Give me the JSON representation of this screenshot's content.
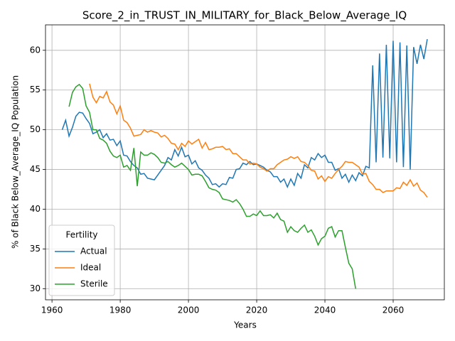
{
  "chart_data": {
    "type": "line",
    "title": "Score_2_in_TRUST_IN_MILITARY_for_Black_Below_Average_IQ",
    "xlabel": "Years",
    "ylabel": "% of Black Below_Average_IQ Population",
    "legend_title": "Fertility",
    "legend": "lower left",
    "grid": true,
    "xlim": [
      1958.1,
      2075
    ],
    "ylim": [
      28.6,
      63.2
    ],
    "xticks": [
      1960,
      1980,
      2000,
      2020,
      2040,
      2060
    ],
    "yticks": [
      30,
      35,
      40,
      45,
      50,
      55,
      60
    ],
    "x": [
      1963,
      1964,
      1965,
      1966,
      1967,
      1968,
      1969,
      1970,
      1971,
      1972,
      1973,
      1974,
      1975,
      1976,
      1977,
      1978,
      1979,
      1980,
      1981,
      1982,
      1983,
      1984,
      1985,
      1986,
      1987,
      1988,
      1989,
      1990,
      1991,
      1992,
      1993,
      1994,
      1995,
      1996,
      1997,
      1998,
      1999,
      2000,
      2001,
      2002,
      2003,
      2004,
      2005,
      2006,
      2007,
      2008,
      2009,
      2010,
      2011,
      2012,
      2013,
      2014,
      2015,
      2016,
      2017,
      2018,
      2019,
      2020,
      2021,
      2022,
      2023,
      2024,
      2025,
      2026,
      2027,
      2028,
      2029,
      2030,
      2031,
      2032,
      2033,
      2034,
      2035,
      2036,
      2037,
      2038,
      2039,
      2040,
      2041,
      2042,
      2043,
      2044,
      2045,
      2046,
      2047,
      2048,
      2049,
      2050,
      2051,
      2052,
      2053,
      2054,
      2055,
      2056,
      2057,
      2058,
      2059,
      2060,
      2061,
      2062,
      2063,
      2064,
      2065,
      2066,
      2067,
      2068,
      2069,
      2070
    ],
    "series": [
      {
        "name": "Actual",
        "color": "#1f77b4",
        "values": [
          50.0,
          51.2,
          49.2,
          50.3,
          51.7,
          52.2,
          52.1,
          51.4,
          50.8,
          49.5,
          49.7,
          50.0,
          49.0,
          49.5,
          48.7,
          48.8,
          48.0,
          48.6,
          46.8,
          46.7,
          46.0,
          45.5,
          45.2,
          44.4,
          44.5,
          43.9,
          43.8,
          43.7,
          44.3,
          44.9,
          45.5,
          46.5,
          46.2,
          47.5,
          46.7,
          47.8,
          46.6,
          46.8,
          45.7,
          46.1,
          45.2,
          44.9,
          44.3,
          43.9,
          43.1,
          43.2,
          42.8,
          43.2,
          43.1,
          44.0,
          43.9,
          45.0,
          45.1,
          45.8,
          45.6,
          46.0,
          45.6,
          45.7,
          45.5,
          45.3,
          44.9,
          44.7,
          44.1,
          44.1,
          43.4,
          43.8,
          42.8,
          43.8,
          43.0,
          44.5,
          43.9,
          45.6,
          45.2,
          46.5,
          46.2,
          47.0,
          46.5,
          46.8,
          45.9,
          45.9,
          44.9,
          45.1,
          43.9,
          44.4,
          43.4,
          44.3,
          43.6,
          44.6,
          44.2,
          45.4,
          45.2,
          58.1,
          45.9,
          59.6,
          46.5,
          60.7,
          46.4,
          61.2,
          45.9,
          61.0,
          45.3,
          60.6,
          45.0,
          60.4,
          58.3,
          60.7,
          58.9,
          61.4
        ]
      },
      {
        "name": "Ideal",
        "color": "#ff7f0e",
        "values": [
          null,
          null,
          null,
          null,
          null,
          null,
          null,
          null,
          55.8,
          54.1,
          53.4,
          54.2,
          54.0,
          54.8,
          53.5,
          53.1,
          52.0,
          53.0,
          51.2,
          50.9,
          50.2,
          49.2,
          49.3,
          49.4,
          50.0,
          49.7,
          49.9,
          49.7,
          49.6,
          49.1,
          49.3,
          48.9,
          48.3,
          48.2,
          47.5,
          48.3,
          47.9,
          48.6,
          48.2,
          48.5,
          48.8,
          47.7,
          48.4,
          47.5,
          47.6,
          47.8,
          47.8,
          47.9,
          47.5,
          47.6,
          47.0,
          47.0,
          46.6,
          46.2,
          46.2,
          45.7,
          45.8,
          45.7,
          45.3,
          45.1,
          44.8,
          45.1,
          45.1,
          45.6,
          45.9,
          46.2,
          46.3,
          46.6,
          46.4,
          46.6,
          46.0,
          45.9,
          45.5,
          44.9,
          44.8,
          43.8,
          44.2,
          43.5,
          44.1,
          43.9,
          44.5,
          45.0,
          45.4,
          46.0,
          45.9,
          45.9,
          45.6,
          45.3,
          44.4,
          44.5,
          43.5,
          43.1,
          42.5,
          42.5,
          42.1,
          42.3,
          42.3,
          42.3,
          42.7,
          42.6,
          43.4,
          43.0,
          43.7,
          42.9,
          43.3,
          42.4,
          42.1,
          41.5
        ]
      },
      {
        "name": "Sterile",
        "color": "#2ca02c",
        "values": [
          null,
          null,
          52.9,
          54.7,
          55.4,
          55.7,
          55.2,
          53.0,
          52.2,
          50.0,
          50.0,
          48.9,
          48.7,
          48.3,
          47.3,
          46.7,
          46.5,
          46.8,
          45.3,
          45.5,
          44.9,
          47.7,
          42.9,
          47.2,
          46.8,
          46.8,
          47.1,
          46.9,
          46.5,
          45.9,
          45.8,
          46.0,
          45.6,
          45.3,
          45.5,
          45.8,
          45.4,
          45.0,
          44.3,
          44.4,
          44.4,
          44.2,
          43.5,
          42.7,
          42.5,
          42.4,
          42.1,
          41.3,
          41.2,
          41.1,
          40.9,
          41.2,
          40.7,
          40.0,
          39.1,
          39.1,
          39.4,
          39.2,
          39.8,
          39.2,
          39.2,
          39.3,
          38.9,
          39.5,
          38.7,
          38.5,
          37.1,
          37.8,
          37.3,
          37.1,
          37.6,
          38.0,
          37.1,
          37.4,
          36.6,
          35.5,
          36.3,
          36.6,
          37.6,
          37.8,
          36.5,
          37.3,
          37.3,
          35.2,
          33.2,
          32.5,
          30.0,
          null,
          null,
          null,
          null,
          null,
          null,
          null,
          null,
          null,
          null,
          null,
          null,
          null,
          null,
          null,
          null,
          null,
          null,
          null,
          null,
          null
        ]
      }
    ]
  }
}
